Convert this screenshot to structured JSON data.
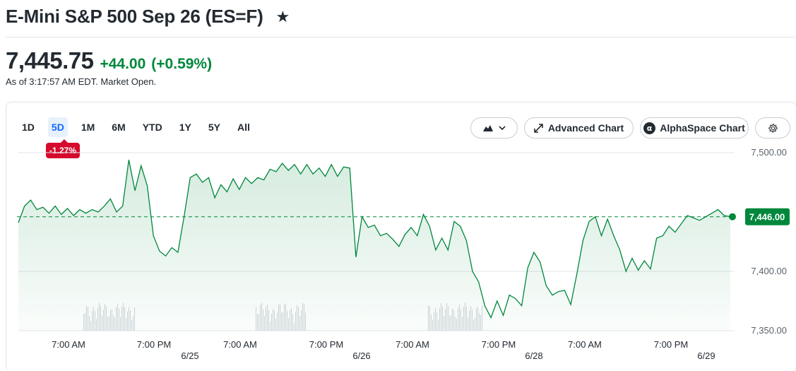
{
  "header": {
    "title": "E-Mini S&P 500 Sep 26 (ES=F)",
    "star_icon": "star-icon"
  },
  "quote": {
    "price": "7,445.75",
    "change": "+44.00",
    "change_percent": "(+0.59%)",
    "as_of": "As of 3:17:57 AM EDT. Market Open.",
    "positive_color": "#00873c"
  },
  "toolbar": {
    "ranges": [
      "1D",
      "5D",
      "1M",
      "6M",
      "YTD",
      "1Y",
      "5Y",
      "All"
    ],
    "active_range": "5D",
    "performance_badge": "-1.27%",
    "chart_type_icon": "mountain-chart-icon",
    "advanced_chart_label": "Advanced Chart",
    "alphaspace_label": "AlphaSpace Chart",
    "settings_icon": "gear-icon"
  },
  "chart_data": {
    "type": "area",
    "y_ticks": [
      "7,500.00",
      "7,400.00",
      "7,350.00"
    ],
    "current_price_label": "7,446.00",
    "ylim": [
      7350,
      7500
    ],
    "x_tick_labels": [
      "7:00 AM",
      "7:00 PM",
      "7:00 AM",
      "7:00 PM",
      "7:00 AM",
      "7:00 PM",
      "7:00 AM",
      "7:00 PM"
    ],
    "date_labels": [
      "6/25",
      "6/26",
      "6/28",
      "6/29"
    ],
    "previous_close": 7446,
    "line_color": "#00873c",
    "series": [
      {
        "values": [
          7441,
          7455,
          7460,
          7452,
          7454,
          7449,
          7455,
          7448,
          7453,
          7447,
          7452,
          7449,
          7452,
          7450,
          7455,
          7461,
          7450,
          7455,
          7494,
          7468,
          7489,
          7472,
          7430,
          7417,
          7413,
          7420,
          7416,
          7446,
          7479,
          7482,
          7475,
          7479,
          7462,
          7473,
          7467,
          7478,
          7469,
          7479,
          7474,
          7479,
          7477,
          7486,
          7484,
          7491,
          7485,
          7490,
          7482,
          7490,
          7482,
          7487,
          7480,
          7490,
          7480,
          7488,
          7487,
          7412,
          7446,
          7437,
          7439,
          7430,
          7432,
          7427,
          7421,
          7431,
          7437,
          7430,
          7448,
          7438,
          7418,
          7428,
          7418,
          7442,
          7438,
          7426,
          7400,
          7391,
          7371,
          7361,
          7375,
          7363,
          7380,
          7377,
          7371,
          7403,
          7416,
          7408,
          7388,
          7380,
          7383,
          7384,
          7372,
          7398,
          7426,
          7442,
          7446,
          7430,
          7444,
          7430,
          7418,
          7400,
          7411,
          7401,
          7409,
          7402,
          7428,
          7430,
          7438,
          7433,
          7440,
          7447,
          7445,
          7443,
          7446,
          7449,
          7452,
          7447,
          7446
        ]
      }
    ]
  }
}
